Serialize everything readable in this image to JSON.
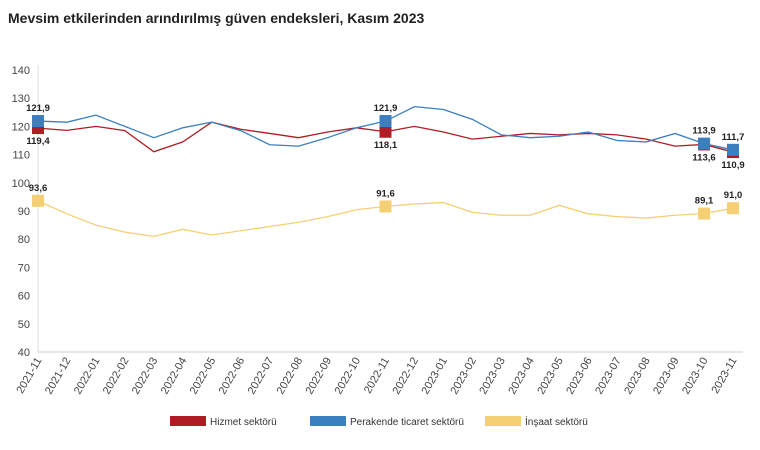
{
  "chart_data": {
    "type": "line",
    "title": "Mevsim etkilerinden arındırılmış güven endeksleri, Kasım 2023",
    "xlabel": "",
    "ylabel": "",
    "ylim": [
      40,
      140
    ],
    "yticks": [
      40,
      50,
      60,
      70,
      80,
      90,
      100,
      110,
      120,
      130,
      140
    ],
    "grid": false,
    "legend_position": "bottom",
    "categories": [
      "2021-11",
      "2021-12",
      "2022-01",
      "2022-02",
      "2022-03",
      "2022-04",
      "2022-05",
      "2022-06",
      "2022-07",
      "2022-08",
      "2022-09",
      "2022-10",
      "2022-11",
      "2022-12",
      "2023-01",
      "2023-02",
      "2023-03",
      "2023-04",
      "2023-05",
      "2023-06",
      "2023-07",
      "2023-08",
      "2023-09",
      "2023-10",
      "2023-11"
    ],
    "series": [
      {
        "name": "Hizmet sektörü",
        "color": "#b01c24",
        "values": [
          119.4,
          118.6,
          120.0,
          118.5,
          111.0,
          114.5,
          121.5,
          119.0,
          117.5,
          116.0,
          118.0,
          119.5,
          118.1,
          120.0,
          118.0,
          115.5,
          116.5,
          117.5,
          117.0,
          117.5,
          117.0,
          115.5,
          113.0,
          113.6,
          110.9
        ],
        "labels": {
          "0": "119,4",
          "12": "118,1",
          "23": "113,6",
          "24": "110,9"
        }
      },
      {
        "name": "Perakende ticaret sektörü",
        "color": "#3a7fc0",
        "values": [
          121.9,
          121.5,
          124.0,
          120.0,
          116.0,
          119.5,
          121.5,
          118.5,
          113.5,
          113.0,
          116.0,
          119.5,
          121.9,
          127.0,
          126.0,
          122.5,
          117.0,
          116.0,
          116.5,
          118.0,
          115.0,
          114.5,
          117.5,
          113.9,
          111.7
        ],
        "labels": {
          "0": "121,9",
          "12": "121,9",
          "23": "113,9",
          "24": "111,7"
        }
      },
      {
        "name": "İnşaat sektörü",
        "color": "#f5cf73",
        "values": [
          93.6,
          89.0,
          85.0,
          82.5,
          81.0,
          83.5,
          81.5,
          83.0,
          84.5,
          86.0,
          88.0,
          90.5,
          91.6,
          92.5,
          93.0,
          89.5,
          88.5,
          88.5,
          92.0,
          89.0,
          88.0,
          87.5,
          88.5,
          89.1,
          91.0
        ],
        "labels": {
          "0": "93,6",
          "12": "91,6",
          "23": "89,1",
          "24": "91,0"
        }
      }
    ]
  }
}
